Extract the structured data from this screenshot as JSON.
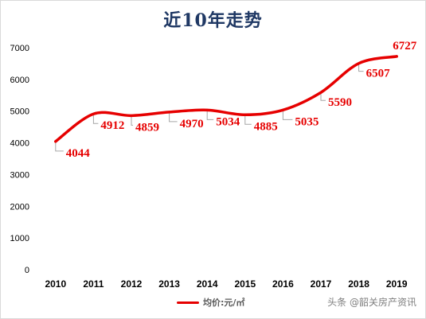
{
  "chart_data": {
    "type": "line",
    "title": "近10年走势",
    "categories": [
      "2010",
      "2011",
      "2012",
      "2013",
      "2014",
      "2015",
      "2016",
      "2017",
      "2018",
      "2019"
    ],
    "series": [
      {
        "name": "均价:元/㎡",
        "values": [
          4044,
          4912,
          4859,
          4970,
          5034,
          4885,
          5035,
          5590,
          6507,
          6727
        ],
        "color": "#e60000"
      }
    ],
    "y_ticks": [
      "0",
      "1000",
      "2000",
      "3000",
      "4000",
      "5000",
      "6000",
      "7000"
    ],
    "ylim": [
      0,
      7000
    ],
    "grid": false,
    "legend_position": "bottom",
    "smooth": true
  },
  "watermark": {
    "text": "头条 @韶关房产资讯"
  },
  "colors": {
    "title": "#1f3864",
    "line": "#e60000",
    "data_label": "#e60000",
    "axis_text": "#000000",
    "leader_line": "#a6a6a6"
  }
}
